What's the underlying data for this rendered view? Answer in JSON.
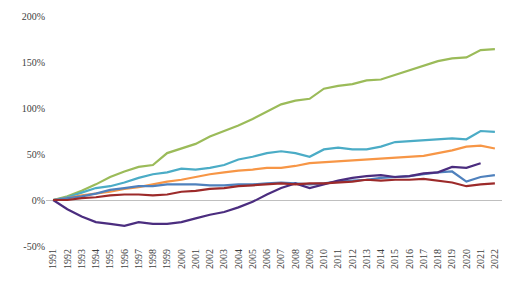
{
  "chart_data": {
    "type": "line",
    "categories": [
      "1991",
      "1992",
      "1993",
      "1994",
      "1995",
      "1996",
      "1997",
      "1998",
      "1999",
      "2000",
      "2001",
      "2002",
      "2003",
      "2004",
      "2005",
      "2006",
      "2007",
      "2008",
      "2009",
      "2010",
      "2011",
      "2012",
      "2013",
      "2014",
      "2015",
      "2016",
      "2017",
      "2018",
      "2019",
      "2020",
      "2021",
      "2022"
    ],
    "series": [
      {
        "color": "#9bbb59",
        "values": [
          0,
          4,
          10,
          17,
          25,
          31,
          36,
          38,
          51,
          56,
          61,
          69,
          75,
          81,
          88,
          96,
          104,
          108,
          110,
          121,
          124,
          126,
          130,
          131,
          136,
          141,
          146,
          151,
          154,
          155,
          163,
          164
        ]
      },
      {
        "color": "#4bacc6",
        "values": [
          0,
          3,
          8,
          13,
          15,
          19,
          24,
          28,
          30,
          34,
          33,
          35,
          38,
          44,
          47,
          51,
          53,
          51,
          47,
          55,
          57,
          55,
          55,
          58,
          63,
          64,
          65,
          66,
          67,
          66,
          75,
          74
        ]
      },
      {
        "color": "#f79646",
        "values": [
          0,
          2,
          5,
          7,
          9,
          12,
          14,
          17,
          20,
          22,
          25,
          28,
          30,
          32,
          33,
          35,
          35,
          37,
          40,
          41,
          42,
          43,
          44,
          45,
          46,
          47,
          48,
          51,
          54,
          58,
          59,
          56
        ]
      },
      {
        "color": "#4f81bd",
        "values": [
          0,
          2,
          4,
          7,
          11,
          13,
          15,
          15,
          17,
          17,
          17,
          16,
          16,
          17,
          17,
          18,
          19,
          18,
          17,
          18,
          20,
          21,
          22,
          24,
          25,
          26,
          28,
          30,
          31,
          20,
          25,
          27
        ]
      },
      {
        "color": "#4b2d7f",
        "values": [
          0,
          -10,
          -18,
          -24,
          -26,
          -28,
          -24,
          -26,
          -26,
          -24,
          -20,
          -16,
          -13,
          -8,
          -2,
          6,
          13,
          18,
          13,
          17,
          21,
          24,
          26,
          27,
          25,
          26,
          29,
          30,
          36,
          35,
          40,
          null
        ]
      },
      {
        "color": "#9c2a2a",
        "values": [
          0,
          0,
          2,
          3,
          5,
          6,
          6,
          5,
          6,
          9,
          10,
          12,
          13,
          15,
          16,
          17,
          18,
          17,
          18,
          18,
          19,
          20,
          22,
          21,
          22,
          22,
          23,
          21,
          19,
          15,
          17,
          18
        ]
      }
    ],
    "ylim": [
      -50,
      200
    ],
    "yticks": [
      {
        "value": -50,
        "label": "-50%"
      },
      {
        "value": 0,
        "label": "0%"
      },
      {
        "value": 50,
        "label": "50%"
      },
      {
        "value": 100,
        "label": "100%"
      },
      {
        "value": 150,
        "label": "150%"
      },
      {
        "value": 200,
        "label": "200%"
      }
    ],
    "grid": false
  }
}
